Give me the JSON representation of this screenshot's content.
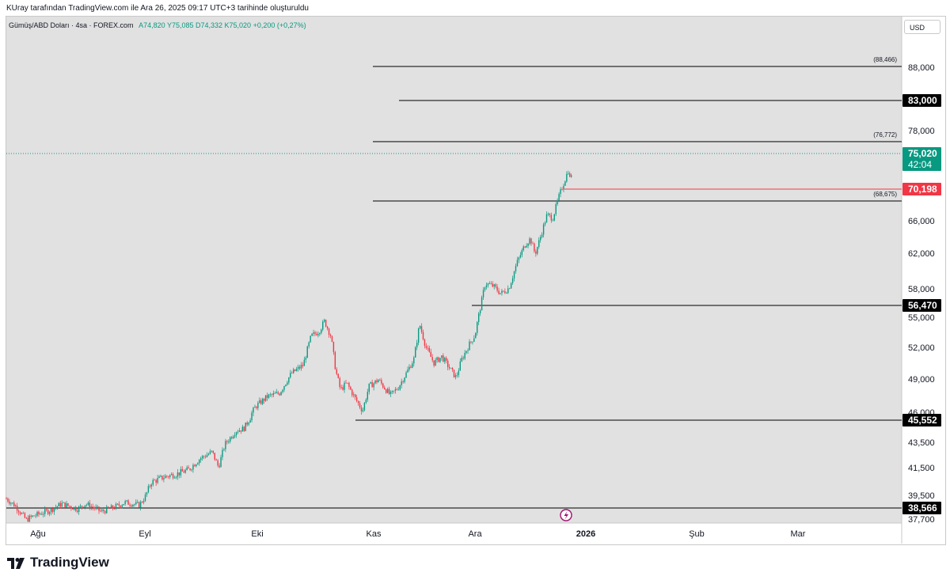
{
  "caption": "KUray tarafından TradingView.com ile Ara 26, 2025 09:17 UTC+3 tarihinde oluşturuldu",
  "legend": {
    "symbol": "Gümüş/ABD Doları · 4sa · FOREX.com",
    "open": "A74,820",
    "high": "Y75,085",
    "low": "D74,332",
    "close": "K75,020",
    "change": "+0,200 (+0,27%)"
  },
  "currency_label": "USD",
  "brand": "TradingView",
  "colors": {
    "up": "#089981",
    "down": "#f23645",
    "plot_bg": "#e1e1e1",
    "label_dark": "#000000"
  },
  "chart_data": {
    "type": "candlestick",
    "title": "Gümüş/ABD Doları · 4sa · FOREX.com",
    "x_tick_labels": [
      "Ağu",
      "Eyl",
      "Eki",
      "Kas",
      "Ara",
      "2026",
      "Şub",
      "Mar"
    ],
    "y_tick_labels": [
      "37,700",
      "39,500",
      "41,500",
      "43,500",
      "46,000",
      "49,000",
      "52,000",
      "55,000",
      "58,000",
      "62,000",
      "66,000",
      "78,000",
      "88,000"
    ],
    "y_range": [
      37.0,
      95.0
    ],
    "price_path": [
      [
        0,
        39.3
      ],
      [
        12,
        38.7
      ],
      [
        25,
        37.7
      ],
      [
        35,
        38.0
      ],
      [
        55,
        38.4
      ],
      [
        70,
        38.9
      ],
      [
        90,
        38.5
      ],
      [
        100,
        38.9
      ],
      [
        120,
        38.3
      ],
      [
        135,
        38.6
      ],
      [
        150,
        39.0
      ],
      [
        168,
        38.8
      ],
      [
        175,
        39.4
      ],
      [
        183,
        40.5
      ],
      [
        200,
        40.9
      ],
      [
        215,
        41.1
      ],
      [
        230,
        41.4
      ],
      [
        245,
        42.3
      ],
      [
        260,
        42.8
      ],
      [
        268,
        41.6
      ],
      [
        276,
        43.4
      ],
      [
        290,
        44.6
      ],
      [
        300,
        44.8
      ],
      [
        315,
        46.6
      ],
      [
        330,
        47.5
      ],
      [
        345,
        47.8
      ],
      [
        360,
        49.6
      ],
      [
        375,
        50.4
      ],
      [
        385,
        53.2
      ],
      [
        395,
        53.7
      ],
      [
        402,
        54.7
      ],
      [
        410,
        53.2
      ],
      [
        416,
        49.9
      ],
      [
        422,
        48.1
      ],
      [
        430,
        48.7
      ],
      [
        440,
        47.4
      ],
      [
        450,
        46.2
      ],
      [
        458,
        48.4
      ],
      [
        470,
        49.0
      ],
      [
        485,
        47.6
      ],
      [
        495,
        48.3
      ],
      [
        505,
        49.6
      ],
      [
        515,
        51.0
      ],
      [
        522,
        54.4
      ],
      [
        530,
        52.1
      ],
      [
        540,
        50.6
      ],
      [
        550,
        51.2
      ],
      [
        560,
        50.1
      ],
      [
        568,
        49.2
      ],
      [
        575,
        50.9
      ],
      [
        585,
        52.4
      ],
      [
        592,
        53.3
      ],
      [
        598,
        55.9
      ],
      [
        605,
        58.7
      ],
      [
        615,
        58.4
      ],
      [
        625,
        57.6
      ],
      [
        635,
        58.2
      ],
      [
        645,
        61.0
      ],
      [
        655,
        63.1
      ],
      [
        662,
        63.9
      ],
      [
        668,
        62.0
      ],
      [
        675,
        64.2
      ],
      [
        683,
        66.9
      ],
      [
        690,
        66.4
      ],
      [
        698,
        69.2
      ],
      [
        705,
        71.3
      ],
      [
        710,
        72.8
      ],
      [
        713,
        70.8
      ],
      [
        715,
        75.0
      ]
    ],
    "horizontal_levels": [
      {
        "value": 88.466,
        "label": "(88,466)",
        "style": "line-label"
      },
      {
        "value": 83.0,
        "label": "83,000",
        "style": "badge"
      },
      {
        "value": 76.772,
        "label": "(76,772)",
        "style": "line-label"
      },
      {
        "value": 68.675,
        "label": "(68,675)",
        "style": "line-label"
      },
      {
        "value": 56.47,
        "label": "56,470",
        "style": "badge"
      },
      {
        "value": 45.552,
        "label": "45,552",
        "style": "badge"
      },
      {
        "value": 38.566,
        "label": "38,566",
        "style": "badge"
      }
    ],
    "last_price": {
      "value": 75.02,
      "label": "75,020",
      "countdown": "42:04"
    },
    "marker_price": {
      "value": 70.198,
      "label": "70,198"
    }
  }
}
